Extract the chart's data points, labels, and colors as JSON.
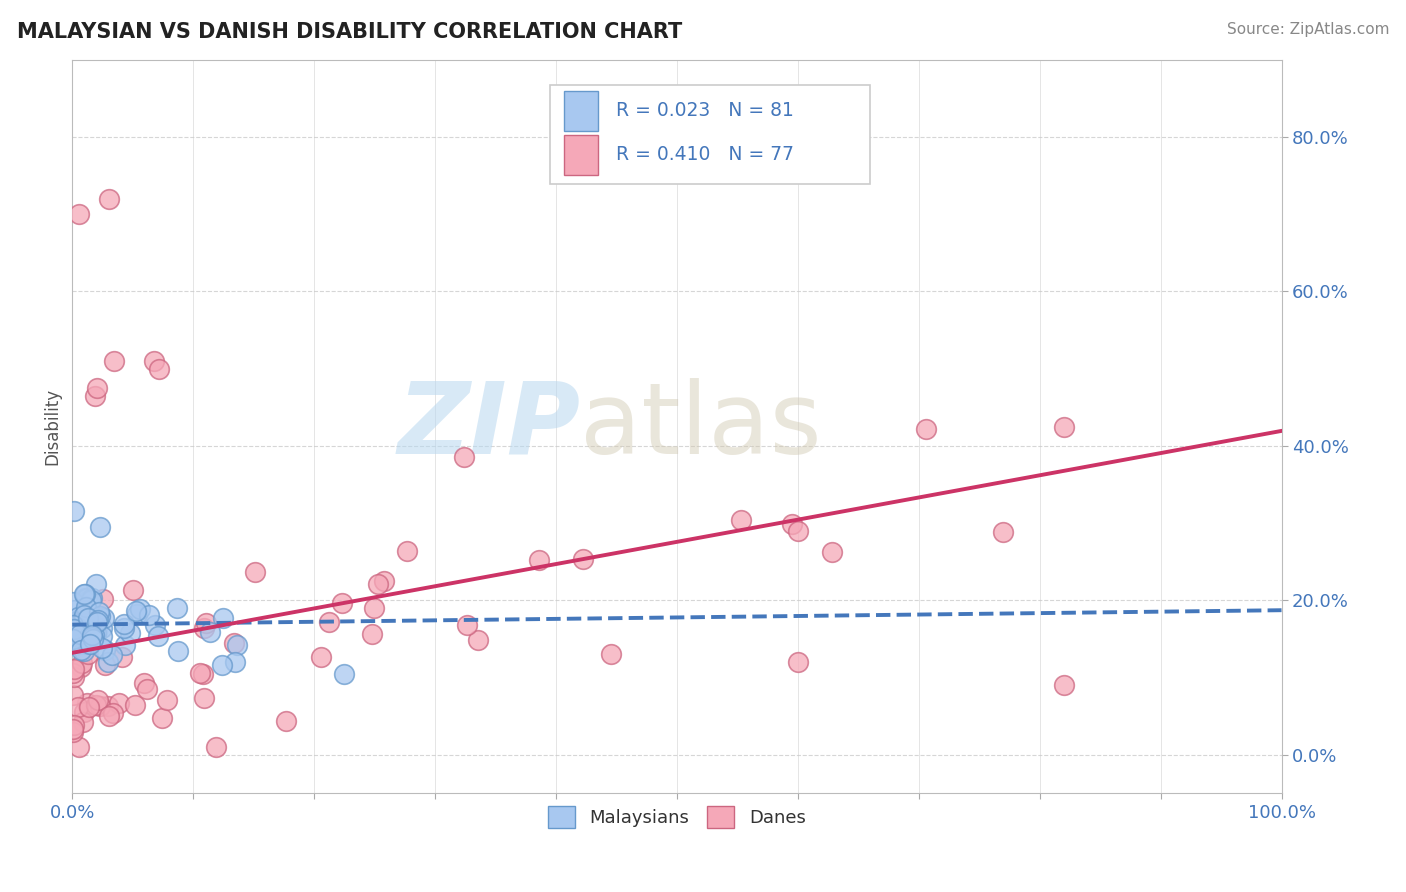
{
  "title": "MALAYSIAN VS DANISH DISABILITY CORRELATION CHART",
  "source": "Source: ZipAtlas.com",
  "ylabel": "Disability",
  "xlim": [
    0.0,
    1.0
  ],
  "ylim": [
    -0.05,
    0.9
  ],
  "yticks": [
    0.0,
    0.2,
    0.4,
    0.6,
    0.8
  ],
  "ytick_labels": [
    "0.0%",
    "20.0%",
    "40.0%",
    "60.0%",
    "80.0%"
  ],
  "xticks": [
    0.0,
    0.1,
    0.2,
    0.3,
    0.4,
    0.5,
    0.6,
    0.7,
    0.8,
    0.9,
    1.0
  ],
  "xtick_labels": [
    "0.0%",
    "",
    "",
    "",
    "",
    "",
    "",
    "",
    "",
    "",
    "100.0%"
  ],
  "malaysian_color": "#a8c8f0",
  "danish_color": "#f5a8b8",
  "malaysian_edge": "#6699cc",
  "danish_edge": "#cc6680",
  "trend_blue": "#4477bb",
  "trend_pink": "#cc3366",
  "R_malaysian": 0.023,
  "N_malaysian": 81,
  "R_danish": 0.41,
  "N_danish": 77,
  "watermark_zip": "ZIP",
  "watermark_atlas": "atlas",
  "background_color": "#ffffff",
  "grid_color": "#cccccc",
  "title_color": "#222222",
  "source_color": "#888888",
  "tick_color": "#4477bb",
  "ylabel_color": "#555555"
}
